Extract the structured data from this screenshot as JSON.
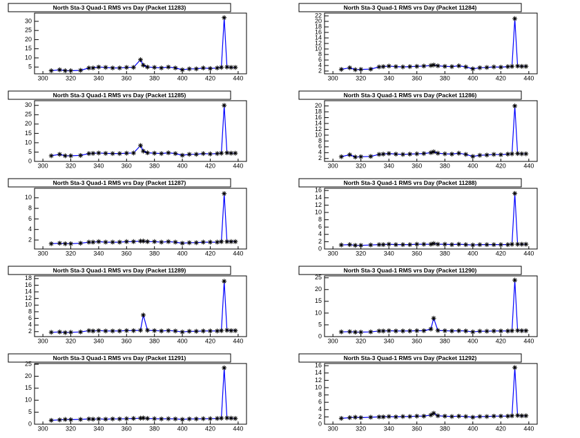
{
  "chart_data": [
    {
      "type": "line",
      "title": "North Sta-3 Quad-1 RMS vrs Day (Packet 11283)",
      "x": [
        306,
        312,
        316,
        320,
        327,
        333,
        336,
        340,
        345,
        350,
        355,
        360,
        365,
        370,
        372,
        375,
        380,
        385,
        390,
        395,
        400,
        405,
        410,
        415,
        420,
        425,
        428,
        430,
        432,
        435,
        438
      ],
      "series": [
        {
          "color": "#0000ff",
          "values": [
            3,
            3.5,
            3,
            3,
            3.2,
            4.5,
            4.5,
            5,
            4.8,
            4.5,
            4.5,
            4.8,
            4.8,
            9,
            6,
            5,
            4.8,
            4.5,
            5,
            4.5,
            3.5,
            4,
            4,
            4.5,
            4.2,
            4.5,
            4.8,
            32,
            5,
            4.8,
            4.8
          ]
        }
      ],
      "marker_color": "#000000",
      "xlim": [
        294,
        446
      ],
      "xticks": [
        300,
        320,
        340,
        360,
        380,
        400,
        420,
        440
      ],
      "ylim": [
        1.3,
        34.5
      ],
      "yticks": [
        5,
        10,
        15,
        20,
        25,
        30
      ]
    },
    {
      "type": "line",
      "title": "North Sta-3 Quad-1 RMS vrs Day (Packet 11284)",
      "x": [
        306,
        312,
        316,
        320,
        327,
        333,
        336,
        340,
        345,
        350,
        355,
        360,
        365,
        370,
        372,
        375,
        380,
        385,
        390,
        395,
        400,
        405,
        410,
        415,
        420,
        425,
        428,
        430,
        432,
        435,
        438
      ],
      "series": [
        {
          "color": "#0000ff",
          "values": [
            2.6,
            3.2,
            2.5,
            2.6,
            2.7,
            3.5,
            3.6,
            3.8,
            3.6,
            3.5,
            3.6,
            3.7,
            3.8,
            4,
            4.2,
            3.9,
            3.7,
            3.6,
            3.9,
            3.5,
            2.8,
            3.2,
            3.3,
            3.5,
            3.4,
            3.6,
            3.7,
            21,
            3.8,
            3.7,
            3.7
          ]
        }
      ],
      "marker_color": "#000000",
      "xlim": [
        294,
        446
      ],
      "xticks": [
        300,
        320,
        340,
        360,
        380,
        400,
        420,
        440
      ],
      "ylim": [
        1,
        23
      ],
      "yticks": [
        2,
        4,
        6,
        8,
        10,
        12,
        14,
        16,
        18,
        20,
        22
      ]
    },
    {
      "type": "line",
      "title": "North Sta-3 Quad-1 RMS vrs Day (Packet 11285)",
      "x": [
        306,
        312,
        316,
        320,
        327,
        333,
        336,
        340,
        345,
        350,
        355,
        360,
        365,
        370,
        372,
        375,
        380,
        385,
        390,
        395,
        400,
        405,
        410,
        415,
        420,
        425,
        428,
        430,
        432,
        435,
        438
      ],
      "series": [
        {
          "color": "#0000ff",
          "values": [
            3,
            3.8,
            3,
            3,
            3.2,
            4.2,
            4.3,
            4.5,
            4.3,
            4.2,
            4.2,
            4.4,
            4.5,
            8.5,
            5.5,
            4.6,
            4.4,
            4.2,
            4.6,
            4.2,
            3.3,
            3.8,
            3.8,
            4.2,
            4,
            4.2,
            4.4,
            30,
            4.6,
            4.4,
            4.4
          ]
        }
      ],
      "marker_color": "#000000",
      "xlim": [
        294,
        446
      ],
      "xticks": [
        300,
        320,
        340,
        360,
        380,
        400,
        420,
        440
      ],
      "ylim": [
        0,
        32.5
      ],
      "yticks": [
        0,
        5,
        10,
        15,
        20,
        25,
        30
      ]
    },
    {
      "type": "line",
      "title": "North Sta-3 Quad-1 RMS vrs Day (Packet 11286)",
      "x": [
        306,
        312,
        316,
        320,
        327,
        333,
        336,
        340,
        345,
        350,
        355,
        360,
        365,
        370,
        372,
        375,
        380,
        385,
        390,
        395,
        400,
        405,
        410,
        415,
        420,
        425,
        428,
        430,
        432,
        435,
        438
      ],
      "series": [
        {
          "color": "#0000ff",
          "values": [
            2.6,
            3.3,
            2.5,
            2.6,
            2.7,
            3.4,
            3.5,
            3.7,
            3.5,
            3.4,
            3.5,
            3.6,
            3.7,
            4,
            4.3,
            3.8,
            3.6,
            3.5,
            3.8,
            3.4,
            2.7,
            3.1,
            3.2,
            3.4,
            3.3,
            3.5,
            3.6,
            20,
            3.7,
            3.6,
            3.6
          ]
        }
      ],
      "marker_color": "#000000",
      "xlim": [
        294,
        446
      ],
      "xticks": [
        300,
        320,
        340,
        360,
        380,
        400,
        420,
        440
      ],
      "ylim": [
        1,
        21.8
      ],
      "yticks": [
        2,
        4,
        6,
        8,
        10,
        12,
        14,
        16,
        18,
        20
      ]
    },
    {
      "type": "line",
      "title": "North Sta-3 Quad-1 RMS vrs Day (Packet 11287)",
      "x": [
        306,
        312,
        316,
        320,
        327,
        333,
        336,
        340,
        345,
        350,
        355,
        360,
        365,
        370,
        372,
        375,
        380,
        385,
        390,
        395,
        400,
        405,
        410,
        415,
        420,
        425,
        428,
        430,
        432,
        435,
        438
      ],
      "series": [
        {
          "color": "#0000ff",
          "values": [
            1.3,
            1.4,
            1.3,
            1.3,
            1.4,
            1.6,
            1.6,
            1.7,
            1.6,
            1.6,
            1.6,
            1.7,
            1.7,
            1.8,
            1.8,
            1.7,
            1.7,
            1.6,
            1.7,
            1.6,
            1.4,
            1.5,
            1.5,
            1.6,
            1.6,
            1.6,
            1.7,
            10.8,
            1.7,
            1.7,
            1.7
          ]
        }
      ],
      "marker_color": "#000000",
      "xlim": [
        294,
        446
      ],
      "xticks": [
        300,
        320,
        340,
        360,
        380,
        400,
        420,
        440
      ],
      "ylim": [
        0.3,
        11.8
      ],
      "yticks": [
        2,
        4,
        6,
        8,
        10
      ]
    },
    {
      "type": "line",
      "title": "North Sta-3 Quad-1 RMS vrs Day (Packet 11288)",
      "x": [
        306,
        312,
        316,
        320,
        327,
        333,
        336,
        340,
        345,
        350,
        355,
        360,
        365,
        370,
        372,
        375,
        380,
        385,
        390,
        395,
        400,
        405,
        410,
        415,
        420,
        425,
        428,
        430,
        432,
        435,
        438
      ],
      "series": [
        {
          "color": "#0000ff",
          "values": [
            1.1,
            1.2,
            1,
            1,
            1.1,
            1.2,
            1.2,
            1.3,
            1.2,
            1.2,
            1.2,
            1.3,
            1.3,
            1.3,
            1.5,
            1.3,
            1.3,
            1.2,
            1.3,
            1.2,
            1.1,
            1.2,
            1.2,
            1.2,
            1.2,
            1.2,
            1.3,
            15.2,
            1.3,
            1.3,
            1.3
          ]
        }
      ],
      "marker_color": "#000000",
      "xlim": [
        294,
        446
      ],
      "xticks": [
        300,
        320,
        340,
        360,
        380,
        400,
        420,
        440
      ],
      "ylim": [
        0,
        16.6
      ],
      "yticks": [
        0,
        2,
        4,
        6,
        8,
        10,
        12,
        14,
        16
      ]
    },
    {
      "type": "line",
      "title": "North Sta-3 Quad-1 RMS vrs Day (Packet 11289)",
      "x": [
        306,
        312,
        316,
        320,
        327,
        333,
        336,
        340,
        345,
        350,
        355,
        360,
        365,
        370,
        372,
        375,
        380,
        385,
        390,
        395,
        400,
        405,
        410,
        415,
        420,
        425,
        428,
        430,
        432,
        435,
        438
      ],
      "series": [
        {
          "color": "#0000ff",
          "values": [
            1.8,
            1.9,
            1.7,
            1.8,
            1.9,
            2.3,
            2.2,
            2.3,
            2.2,
            2.2,
            2.2,
            2.3,
            2.3,
            2.4,
            7,
            2.4,
            2.3,
            2.2,
            2.3,
            2.2,
            1.9,
            2.1,
            2.1,
            2.2,
            2.2,
            2.2,
            2.3,
            17.2,
            2.4,
            2.3,
            2.3
          ]
        }
      ],
      "marker_color": "#000000",
      "xlim": [
        294,
        446
      ],
      "xticks": [
        300,
        320,
        340,
        360,
        380,
        400,
        420,
        440
      ],
      "ylim": [
        0.5,
        18.8
      ],
      "yticks": [
        2,
        4,
        6,
        8,
        10,
        12,
        14,
        16,
        18
      ]
    },
    {
      "type": "line",
      "title": "North Sta-3 Quad-1 RMS vrs Day (Packet 11290)",
      "x": [
        306,
        312,
        316,
        320,
        327,
        333,
        336,
        340,
        345,
        350,
        355,
        360,
        365,
        370,
        372,
        375,
        380,
        385,
        390,
        395,
        400,
        405,
        410,
        415,
        420,
        425,
        428,
        430,
        432,
        435,
        438
      ],
      "series": [
        {
          "color": "#0000ff",
          "values": [
            2,
            2.1,
            1.9,
            1.9,
            2,
            2.4,
            2.4,
            2.5,
            2.4,
            2.4,
            2.4,
            2.5,
            2.5,
            3.2,
            7.8,
            2.6,
            2.5,
            2.4,
            2.5,
            2.4,
            2,
            2.3,
            2.3,
            2.4,
            2.4,
            2.4,
            2.5,
            24,
            2.6,
            2.5,
            2.5
          ]
        }
      ],
      "marker_color": "#000000",
      "xlim": [
        294,
        446
      ],
      "xticks": [
        300,
        320,
        340,
        360,
        380,
        400,
        420,
        440
      ],
      "ylim": [
        0,
        25.8
      ],
      "yticks": [
        0,
        5,
        10,
        15,
        20,
        25
      ]
    },
    {
      "type": "line",
      "title": "North Sta-3 Quad-1 RMS vrs Day (Packet 11291)",
      "x": [
        306,
        312,
        316,
        320,
        327,
        333,
        336,
        340,
        345,
        350,
        355,
        360,
        365,
        370,
        372,
        375,
        380,
        385,
        390,
        395,
        400,
        405,
        410,
        415,
        420,
        425,
        428,
        430,
        432,
        435,
        438
      ],
      "series": [
        {
          "color": "#0000ff",
          "values": [
            1.6,
            1.8,
            2,
            1.9,
            2,
            2.2,
            2.1,
            2.2,
            2.1,
            2.2,
            2.2,
            2.3,
            2.4,
            2.5,
            2.6,
            2.4,
            2.3,
            2.2,
            2.3,
            2.2,
            2,
            2.2,
            2.2,
            2.3,
            2.3,
            2.4,
            2.5,
            23.5,
            2.6,
            2.5,
            2.4
          ]
        }
      ],
      "marker_color": "#000000",
      "xlim": [
        294,
        446
      ],
      "xticks": [
        300,
        320,
        340,
        360,
        380,
        400,
        420,
        440
      ],
      "ylim": [
        0,
        25.3
      ],
      "yticks": [
        0,
        5,
        10,
        15,
        20,
        25
      ]
    },
    {
      "type": "line",
      "title": "North Sta-3 Quad-1 RMS vrs Day (Packet 11292)",
      "x": [
        306,
        312,
        316,
        320,
        327,
        333,
        336,
        340,
        345,
        350,
        355,
        360,
        365,
        370,
        372,
        375,
        380,
        385,
        390,
        395,
        400,
        405,
        410,
        415,
        420,
        425,
        428,
        430,
        432,
        435,
        438
      ],
      "series": [
        {
          "color": "#0000ff",
          "values": [
            1.6,
            1.8,
            1.9,
            1.8,
            1.9,
            2,
            2,
            2.1,
            2,
            2.1,
            2.1,
            2.2,
            2.2,
            2.5,
            3,
            2.3,
            2.2,
            2.1,
            2.2,
            2.1,
            1.9,
            2.1,
            2.1,
            2.2,
            2.2,
            2.2,
            2.3,
            15.5,
            2.4,
            2.3,
            2.3
          ]
        }
      ],
      "marker_color": "#000000",
      "xlim": [
        294,
        446
      ],
      "xticks": [
        300,
        320,
        340,
        360,
        380,
        400,
        420,
        440
      ],
      "ylim": [
        0,
        16.6
      ],
      "yticks": [
        0,
        2,
        4,
        6,
        8,
        10,
        12,
        14,
        16
      ]
    }
  ]
}
